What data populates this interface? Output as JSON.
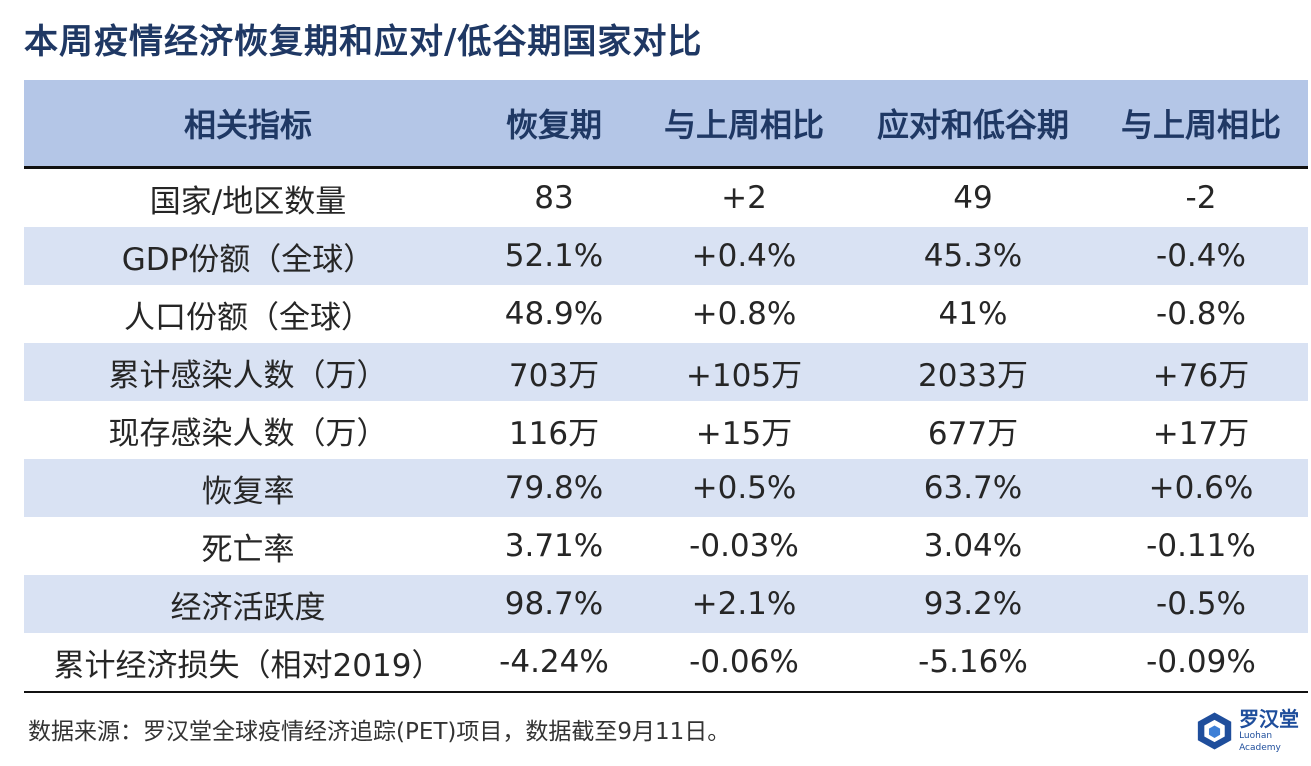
{
  "title": "本周疫情经济恢复期和应对/低谷期国家对比",
  "table": {
    "headers": [
      "相关指标",
      "恢复期",
      "与上周相比",
      "应对和低谷期",
      "与上周相比"
    ],
    "rows": [
      [
        "国家/地区数量",
        "83",
        "+2",
        "49",
        "-2"
      ],
      [
        "GDP份额（全球）",
        "52.1%",
        "+0.4%",
        "45.3%",
        "-0.4%"
      ],
      [
        "人口份额（全球）",
        "48.9%",
        "+0.8%",
        "41%",
        "-0.8%"
      ],
      [
        "累计感染人数（万）",
        "703万",
        "+105万",
        "2033万",
        "+76万"
      ],
      [
        "现存感染人数（万）",
        "116万",
        "+15万",
        "677万",
        "+17万"
      ],
      [
        "恢复率",
        "79.8%",
        "+0.5%",
        "63.7%",
        "+0.6%"
      ],
      [
        "死亡率",
        "3.71%",
        "-0.03%",
        "3.04%",
        "-0.11%"
      ],
      [
        "经济活跃度",
        "98.7%",
        "+2.1%",
        "93.2%",
        "-0.5%"
      ],
      [
        "累计经济损失（相对2019）",
        "-4.24%",
        "-0.06%",
        "-5.16%",
        "-0.09%"
      ]
    ]
  },
  "footer": "数据来源：罗汉堂全球疫情经济追踪(PET)项目，数据截至9月11日。",
  "logo": {
    "name": "罗汉堂",
    "subtitle": "Luohan Academy",
    "icon": "luohan-logo-icon",
    "color": "#1f4e9c"
  },
  "colors": {
    "header_bg": "#b4c6e7",
    "stripe_bg": "#d9e2f3",
    "title": "#1f3864"
  }
}
